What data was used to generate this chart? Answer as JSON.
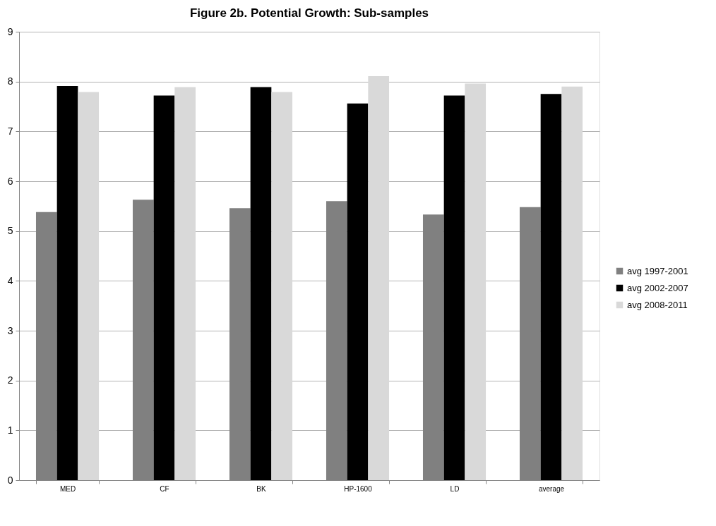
{
  "chart_data": {
    "type": "bar",
    "title": "Figure 2b. Potential Growth: Sub-samples",
    "categories": [
      "MED",
      "CF",
      "BK",
      "HP-1600",
      "LD",
      "average"
    ],
    "series": [
      {
        "name": "avg 1997-2001",
        "color": "#808080",
        "values": [
          5.38,
          5.63,
          5.46,
          5.6,
          5.33,
          5.48
        ]
      },
      {
        "name": "avg 2002-2007",
        "color": "#000000",
        "values": [
          7.91,
          7.72,
          7.89,
          7.56,
          7.72,
          7.75
        ]
      },
      {
        "name": "avg 2008-2011",
        "color": "#d9d9d9",
        "values": [
          7.79,
          7.89,
          7.79,
          8.11,
          7.96,
          7.9
        ]
      }
    ],
    "ylim": [
      0,
      9
    ],
    "yticks": [
      0,
      1,
      2,
      3,
      4,
      5,
      6,
      7,
      8,
      9
    ],
    "grid": "y",
    "legend": "right"
  }
}
